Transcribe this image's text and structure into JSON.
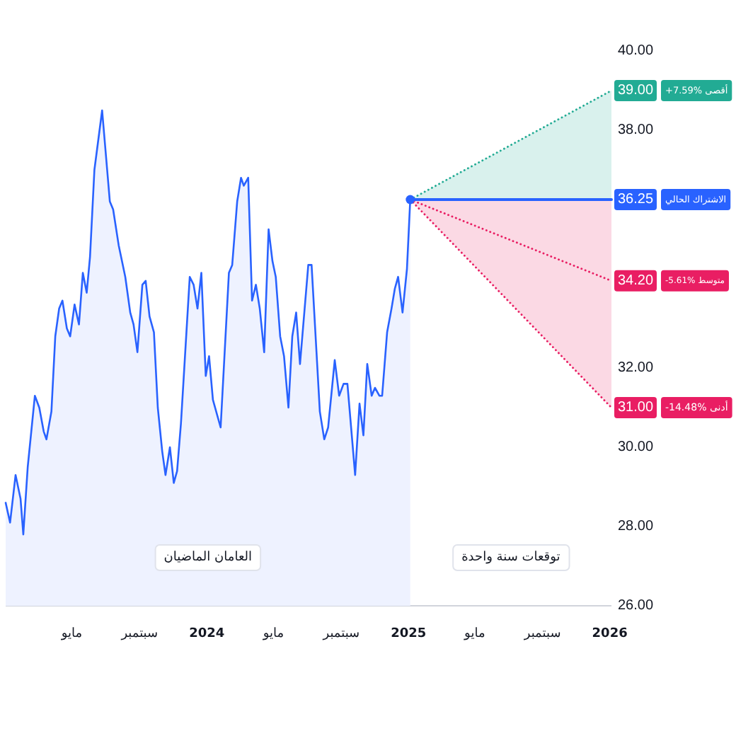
{
  "chart_data": {
    "type": "area",
    "xlim": [
      "2023-01-01",
      "2026-01-04"
    ],
    "xticks": [
      {
        "value": "2023-05-01",
        "label": "مايو"
      },
      {
        "value": "2023-09-01",
        "label": "سبتمبر"
      },
      {
        "value": "2024-01-01",
        "label": "2024"
      },
      {
        "value": "2024-05-01",
        "label": "مايو"
      },
      {
        "value": "2024-09-01",
        "label": "سبتمبر"
      },
      {
        "value": "2025-01-01",
        "label": "2025"
      },
      {
        "value": "2025-05-01",
        "label": "مايو"
      },
      {
        "value": "2025-09-01",
        "label": "سبتمبر"
      },
      {
        "value": "2026-01-01",
        "label": "2026"
      }
    ],
    "ylim": [
      26,
      40
    ],
    "yticks": [
      {
        "value": 26,
        "label": "26.00"
      },
      {
        "value": 28,
        "label": "28.00"
      },
      {
        "value": 30,
        "label": "30.00"
      },
      {
        "value": 32,
        "label": "32.00"
      },
      {
        "value": 38,
        "label": "38.00"
      },
      {
        "value": 40,
        "label": "40.00"
      }
    ],
    "legend": "right",
    "series": [
      {
        "color": "#2962ff",
        "x": [
          "2023-01-01",
          "2023-01-09",
          "2023-01-19",
          "2023-01-28",
          "2023-02-02",
          "2023-02-10",
          "2023-02-23",
          "2023-03-03",
          "2023-03-11",
          "2023-03-16",
          "2023-03-25",
          "2023-04-01",
          "2023-04-08",
          "2023-04-14",
          "2023-04-22",
          "2023-04-28",
          "2023-05-06",
          "2023-05-14",
          "2023-05-21",
          "2023-05-28",
          "2023-06-03",
          "2023-06-11",
          "2023-06-25",
          "2023-07-09",
          "2023-07-15",
          "2023-07-25",
          "2023-08-06",
          "2023-08-15",
          "2023-08-21",
          "2023-08-28",
          "2023-09-06",
          "2023-09-12",
          "2023-09-19",
          "2023-09-27",
          "2023-10-04",
          "2023-10-12",
          "2023-10-18",
          "2023-10-26",
          "2023-11-02",
          "2023-11-08",
          "2023-11-15",
          "2023-12-01",
          "2023-12-08",
          "2023-12-15",
          "2023-12-22",
          "2023-12-30",
          "2024-01-05",
          "2024-01-12",
          "2024-01-26",
          "2024-02-10",
          "2024-02-16",
          "2024-02-25",
          "2024-03-03",
          "2024-03-08",
          "2024-03-16",
          "2024-03-23",
          "2024-03-30",
          "2024-04-06",
          "2024-04-14",
          "2024-04-22",
          "2024-04-29",
          "2024-05-05",
          "2024-05-13",
          "2024-05-20",
          "2024-05-28",
          "2024-06-04",
          "2024-06-11",
          "2024-06-18",
          "2024-07-03",
          "2024-07-09",
          "2024-07-24",
          "2024-08-01",
          "2024-08-08",
          "2024-08-20",
          "2024-08-28",
          "2024-09-05",
          "2024-09-12",
          "2024-09-26",
          "2024-10-04",
          "2024-10-11",
          "2024-10-18",
          "2024-10-26",
          "2024-11-01",
          "2024-11-09",
          "2024-11-14",
          "2024-11-23",
          "2024-12-01",
          "2024-12-07",
          "2024-12-13",
          "2024-12-21",
          "2024-12-29",
          "2025-01-04"
        ],
        "values": [
          28.6,
          28.1,
          29.3,
          28.7,
          27.8,
          29.5,
          31.3,
          31.0,
          30.4,
          30.2,
          30.9,
          32.8,
          33.5,
          33.7,
          33.0,
          32.8,
          33.6,
          33.1,
          34.4,
          33.9,
          34.8,
          37.0,
          38.5,
          36.2,
          36.0,
          35.1,
          34.3,
          33.4,
          33.1,
          32.4,
          34.1,
          34.2,
          33.3,
          32.9,
          31.0,
          29.9,
          29.3,
          30.0,
          29.1,
          29.4,
          30.6,
          34.3,
          34.1,
          33.5,
          34.4,
          31.8,
          32.3,
          31.2,
          30.5,
          34.4,
          34.6,
          36.2,
          36.8,
          36.6,
          36.8,
          33.7,
          34.1,
          33.5,
          32.4,
          35.5,
          34.7,
          34.3,
          32.8,
          32.3,
          31.0,
          32.8,
          33.4,
          32.1,
          34.6,
          34.6,
          30.9,
          30.2,
          30.5,
          32.2,
          31.3,
          31.6,
          31.6,
          29.3,
          31.1,
          30.3,
          32.1,
          31.3,
          31.5,
          31.3,
          31.3,
          32.9,
          33.5,
          34.0,
          34.3,
          33.4,
          34.5,
          36.25
        ]
      },
      {
        "type": "line",
        "name": "+7.59% أقصى",
        "color": "#22ab94",
        "line_style": "dotted",
        "x": [
          "2025-01-04",
          "2026-01-04"
        ],
        "values": [
          36.25,
          39.0
        ],
        "value_labels": [
          null,
          "39.00"
        ],
        "lower": [
          36.25,
          36.25
        ],
        "upper": [
          36.25,
          39.0
        ]
      },
      {
        "type": "line",
        "name": "-14.48% أدنى",
        "color": "#e91e63",
        "line_style": "dotted",
        "x": [
          "2025-01-04",
          "2026-01-04"
        ],
        "values": [
          36.25,
          31.0
        ],
        "value_labels": [
          null,
          "31.00"
        ],
        "lower": [
          36.25,
          31.0
        ],
        "upper": [
          36.25,
          36.25
        ]
      },
      {
        "type": "line",
        "name": "-5.61% متوسط",
        "color": "#e91e63",
        "line_style": "dotted",
        "x": [
          "2025-01-04",
          "2026-01-04"
        ],
        "values": [
          36.25,
          34.2
        ],
        "value_labels": [
          null,
          "34.20"
        ]
      },
      {
        "type": "line",
        "name": "الاشتراك الحالي",
        "color": "#2962ff",
        "line_style": "solid",
        "x": [
          "2025-01-04",
          "2026-01-04"
        ],
        "values": [
          36.25,
          36.25
        ],
        "value_labels": [
          null,
          "36.25"
        ]
      },
      {
        "type": "scatter",
        "color": "#2962ff",
        "marker": "circle",
        "x": [
          "2025-01-04"
        ],
        "values": [
          36.25
        ]
      }
    ],
    "annotations": [
      "العامان الماضيان",
      "توقعات سنة واحدة"
    ]
  }
}
